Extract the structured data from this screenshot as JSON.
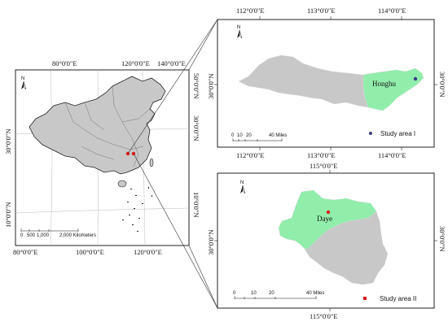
{
  "main_map": {
    "top_lon": [
      "80°0'0\"E",
      "120°0'0\"E",
      "140°0'0\"E"
    ],
    "bottom_lon": [
      "80°0'0\"E",
      "100°0'0\"E",
      "120°0'0\"E"
    ],
    "left_lat": [
      "30°0'0\"N",
      "10°0'0\"N"
    ],
    "right_lat": [
      "50°0'0\"N",
      "30°0'0\"N",
      "10°0'0\"N"
    ],
    "scale_ticks": [
      "0",
      "500",
      "1,000",
      "2,000 Kilometers"
    ],
    "north": "N"
  },
  "inset1": {
    "top_lon": [
      "112°0'0\"E",
      "113°0'0\"E",
      "114°0'0\"E"
    ],
    "bottom_lon": [
      "112°0'0\"E",
      "113°0'0\"E",
      "114°0'0\"E"
    ],
    "left_lat": "30°0'0\"N",
    "right_lat": "30°0'0\"N",
    "place": "Honghu",
    "scale_ticks": [
      "0",
      "10",
      "20",
      "40 Miles"
    ],
    "legend": "Study area  I",
    "north": "N"
  },
  "inset2": {
    "top_lon": "115°0'0\"E",
    "bottom_lon": "115°0'0\"E",
    "left_lat": "30°0'0\"N",
    "right_lat": "30°0'0\"N",
    "place": "Daye",
    "scale_ticks": [
      "0",
      "10",
      "20",
      "40 Miles"
    ],
    "legend": "Study area  II",
    "north": "N"
  },
  "colors": {
    "land": "#c8c8c8",
    "study": "#90eeaa",
    "marker1": "#3a3a8a",
    "marker2": "#e01818"
  }
}
